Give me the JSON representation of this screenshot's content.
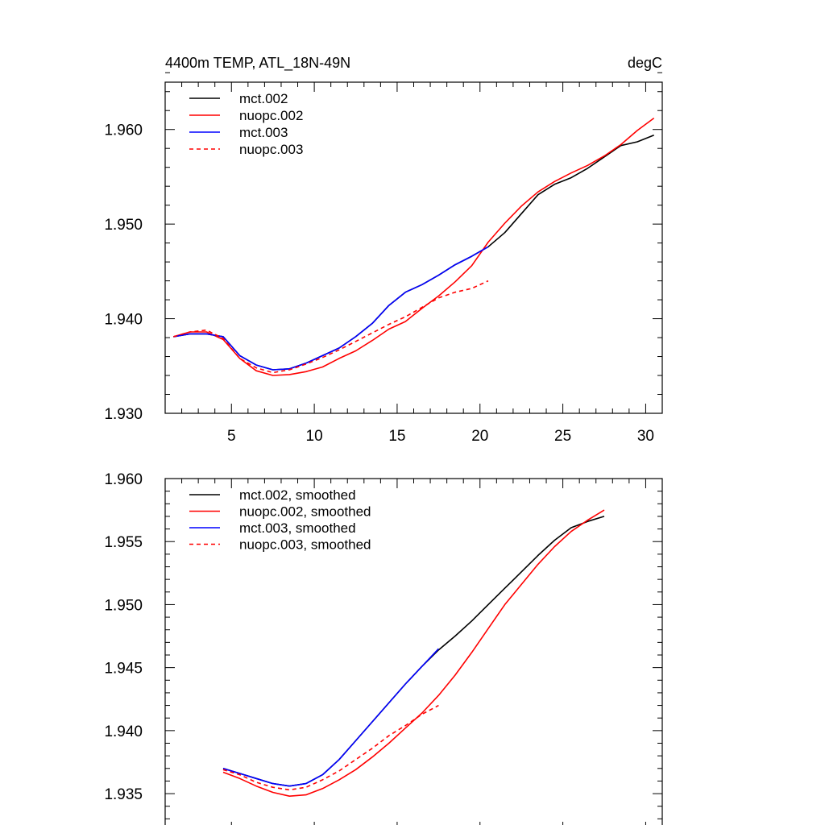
{
  "chart_data": [
    {
      "type": "line",
      "title": "4400m TEMP, ATL_18N-49N",
      "units_label": "degC",
      "xlabel": "",
      "ylabel": "",
      "xlim": [
        1,
        31
      ],
      "ylim": [
        1.93,
        1.965
      ],
      "xticks": [
        5,
        10,
        15,
        20,
        25,
        30
      ],
      "xtick_labels": [
        "5",
        "10",
        "15",
        "20",
        "25",
        "30"
      ],
      "yticks": [
        1.93,
        1.94,
        1.95,
        1.96
      ],
      "ytick_labels": [
        "1.930",
        "1.940",
        "1.950",
        "1.960"
      ],
      "series": [
        {
          "name": "mct.002",
          "color": "#000000",
          "dash": "solid",
          "x": [
            1.5,
            2.5,
            3.5,
            4.5,
            5.5,
            6.5,
            7.5,
            8.5,
            9.5,
            10.5,
            11.5,
            12.5,
            13.5,
            14.5,
            15.5,
            16.5,
            17.5,
            18.5,
            19.5,
            20.5,
            21.5,
            22.5,
            23.5,
            24.5,
            25.5,
            26.5,
            27.5,
            28.5,
            29.5,
            30.5
          ],
          "y": [
            1.9381,
            1.9384,
            1.9384,
            1.9381,
            1.9361,
            1.9351,
            1.9346,
            1.9347,
            1.9353,
            1.9361,
            1.9369,
            1.9381,
            1.9395,
            1.9414,
            1.9428,
            1.9436,
            1.9446,
            1.9457,
            1.9466,
            1.9476,
            1.9491,
            1.9511,
            1.9531,
            1.9542,
            1.9549,
            1.9559,
            1.9571,
            1.9583,
            1.9587,
            1.9594
          ]
        },
        {
          "name": "nuopc.002",
          "color": "#ff0000",
          "dash": "solid",
          "x": [
            1.5,
            2.5,
            3.5,
            4.5,
            5.5,
            6.5,
            7.5,
            8.5,
            9.5,
            10.5,
            11.5,
            12.5,
            13.5,
            14.5,
            15.5,
            16.5,
            17.5,
            18.5,
            19.5,
            20.5,
            21.5,
            22.5,
            23.5,
            24.5,
            25.5,
            26.5,
            27.5,
            28.5,
            29.5,
            30.5
          ],
          "y": [
            1.9381,
            1.9386,
            1.9386,
            1.9378,
            1.9358,
            1.9345,
            1.934,
            1.9341,
            1.9344,
            1.9349,
            1.9358,
            1.9366,
            1.9377,
            1.9389,
            1.9397,
            1.9411,
            1.9424,
            1.9439,
            1.9456,
            1.9481,
            1.9501,
            1.9519,
            1.9534,
            1.9545,
            1.9554,
            1.9562,
            1.9572,
            1.9584,
            1.9599,
            1.9612
          ]
        },
        {
          "name": "mct.003",
          "color": "#0000ff",
          "dash": "solid",
          "x": [
            1.5,
            2.5,
            3.5,
            4.5,
            5.5,
            6.5,
            7.5,
            8.5,
            9.5,
            10.5,
            11.5,
            12.5,
            13.5,
            14.5,
            15.5,
            16.5,
            17.5,
            18.5,
            19.5,
            20.5
          ],
          "y": [
            1.9381,
            1.9384,
            1.9384,
            1.9381,
            1.9361,
            1.9351,
            1.9346,
            1.9347,
            1.9353,
            1.9361,
            1.9369,
            1.9381,
            1.9395,
            1.9414,
            1.9428,
            1.9436,
            1.9446,
            1.9457,
            1.9466,
            1.9476
          ]
        },
        {
          "name": "nuopc.003",
          "color": "#ff0000",
          "dash": "dashed",
          "x": [
            1.5,
            2.5,
            3.5,
            4.5,
            5.5,
            6.5,
            7.5,
            8.5,
            9.5,
            10.5,
            11.5,
            12.5,
            13.5,
            14.5,
            15.5,
            16.5,
            17.5,
            18.5,
            19.5,
            20.5
          ],
          "y": [
            1.9381,
            1.9386,
            1.9388,
            1.9379,
            1.9358,
            1.9348,
            1.9343,
            1.9346,
            1.9352,
            1.9359,
            1.9367,
            1.9376,
            1.9385,
            1.9394,
            1.9402,
            1.9412,
            1.9422,
            1.9428,
            1.9432,
            1.944
          ]
        }
      ]
    },
    {
      "type": "line",
      "title": "",
      "xlabel": "",
      "ylabel": "",
      "xlim": [
        1,
        31
      ],
      "ylim": [
        1.932,
        1.96
      ],
      "xticks": [
        5,
        10,
        15,
        20,
        25,
        30
      ],
      "yticks": [
        1.935,
        1.94,
        1.945,
        1.95,
        1.955,
        1.96
      ],
      "ytick_labels": [
        "1.935",
        "1.940",
        "1.945",
        "1.950",
        "1.955",
        "1.960"
      ],
      "series": [
        {
          "name": "mct.002, smoothed",
          "color": "#000000",
          "dash": "solid",
          "x": [
            4.5,
            5.5,
            6.5,
            7.5,
            8.5,
            9.5,
            10.5,
            11.5,
            12.5,
            13.5,
            14.5,
            15.5,
            16.5,
            17.5,
            18.5,
            19.5,
            20.5,
            21.5,
            22.5,
            23.5,
            24.5,
            25.5,
            26.5,
            27.5
          ],
          "y": [
            1.937,
            1.9366,
            1.9362,
            1.9358,
            1.9356,
            1.9358,
            1.9365,
            1.9377,
            1.9392,
            1.9407,
            1.9422,
            1.9437,
            1.9451,
            1.9464,
            1.9475,
            1.9487,
            1.95,
            1.9513,
            1.9526,
            1.9539,
            1.9551,
            1.9561,
            1.9566,
            1.957
          ]
        },
        {
          "name": "nuopc.002, smoothed",
          "color": "#ff0000",
          "dash": "solid",
          "x": [
            4.5,
            5.5,
            6.5,
            7.5,
            8.5,
            9.5,
            10.5,
            11.5,
            12.5,
            13.5,
            14.5,
            15.5,
            16.5,
            17.5,
            18.5,
            19.5,
            20.5,
            21.5,
            22.5,
            23.5,
            24.5,
            25.5,
            26.5,
            27.5
          ],
          "y": [
            1.9367,
            1.9362,
            1.9356,
            1.9351,
            1.9348,
            1.9349,
            1.9354,
            1.9361,
            1.9369,
            1.9379,
            1.939,
            1.9402,
            1.9414,
            1.9428,
            1.9444,
            1.9462,
            1.9481,
            1.95,
            1.9516,
            1.9532,
            1.9546,
            1.9558,
            1.9567,
            1.9575
          ]
        },
        {
          "name": "mct.003, smoothed",
          "color": "#0000ff",
          "dash": "solid",
          "x": [
            4.5,
            5.5,
            6.5,
            7.5,
            8.5,
            9.5,
            10.5,
            11.5,
            12.5,
            13.5,
            14.5,
            15.5,
            16.5,
            17.5
          ],
          "y": [
            1.937,
            1.9366,
            1.9362,
            1.9358,
            1.9356,
            1.9358,
            1.9365,
            1.9377,
            1.9392,
            1.9407,
            1.9422,
            1.9437,
            1.9451,
            1.9465
          ]
        },
        {
          "name": "nuopc.003, smoothed",
          "color": "#ff0000",
          "dash": "dashed",
          "x": [
            4.5,
            5.5,
            6.5,
            7.5,
            8.5,
            9.5,
            10.5,
            11.5,
            12.5,
            13.5,
            14.5,
            15.5,
            16.5,
            17.5
          ],
          "y": [
            1.9369,
            1.9365,
            1.9359,
            1.9355,
            1.9353,
            1.9355,
            1.9361,
            1.9368,
            1.9377,
            1.9386,
            1.9396,
            1.9404,
            1.9413,
            1.942
          ]
        }
      ]
    }
  ]
}
